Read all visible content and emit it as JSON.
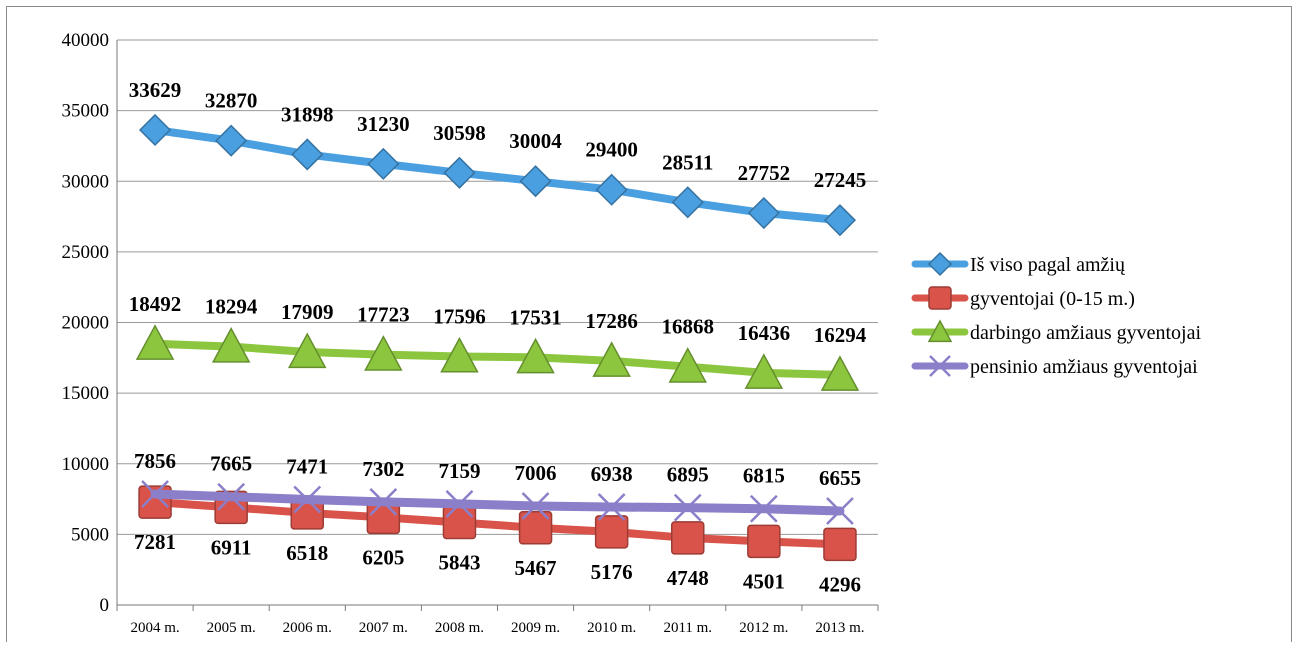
{
  "chart_data": {
    "type": "line",
    "title": "",
    "xlabel": "",
    "ylabel": "",
    "categories": [
      "2004 m.",
      "2005 m.",
      "2006 m.",
      "2007 m.",
      "2008 m.",
      "2009 m.",
      "2010 m.",
      "2011 m.",
      "2012 m.",
      "2013 m."
    ],
    "ylim": [
      0,
      40000
    ],
    "yticks": [
      "0",
      "5000",
      "10000",
      "15000",
      "20000",
      "25000",
      "30000",
      "35000",
      "40000"
    ],
    "grid": true,
    "legend_position": "right",
    "series": [
      {
        "name": "Iš viso pagal amžių",
        "marker": "diamond",
        "color": "#4a9fe0",
        "label_position": "above",
        "values": [
          33629,
          32870,
          31898,
          31230,
          30598,
          30004,
          29400,
          28511,
          27752,
          27245
        ]
      },
      {
        "name": "gyventojai (0-15 m.)",
        "marker": "square",
        "color": "#d9534a",
        "label_position": "below",
        "values": [
          7281,
          6911,
          6518,
          6205,
          5843,
          5467,
          5176,
          4748,
          4501,
          4296
        ]
      },
      {
        "name": "darbingo amžiaus gyventojai",
        "marker": "triangle",
        "color": "#8cc63f",
        "label_position": "above",
        "values": [
          18492,
          18294,
          17909,
          17723,
          17596,
          17531,
          17286,
          16868,
          16436,
          16294
        ]
      },
      {
        "name": "pensinio amžiaus gyventojai",
        "marker": "x",
        "color": "#8a7fc8",
        "label_position": "above",
        "values": [
          7856,
          7665,
          7471,
          7302,
          7159,
          7006,
          6938,
          6895,
          6815,
          6655
        ]
      }
    ]
  }
}
